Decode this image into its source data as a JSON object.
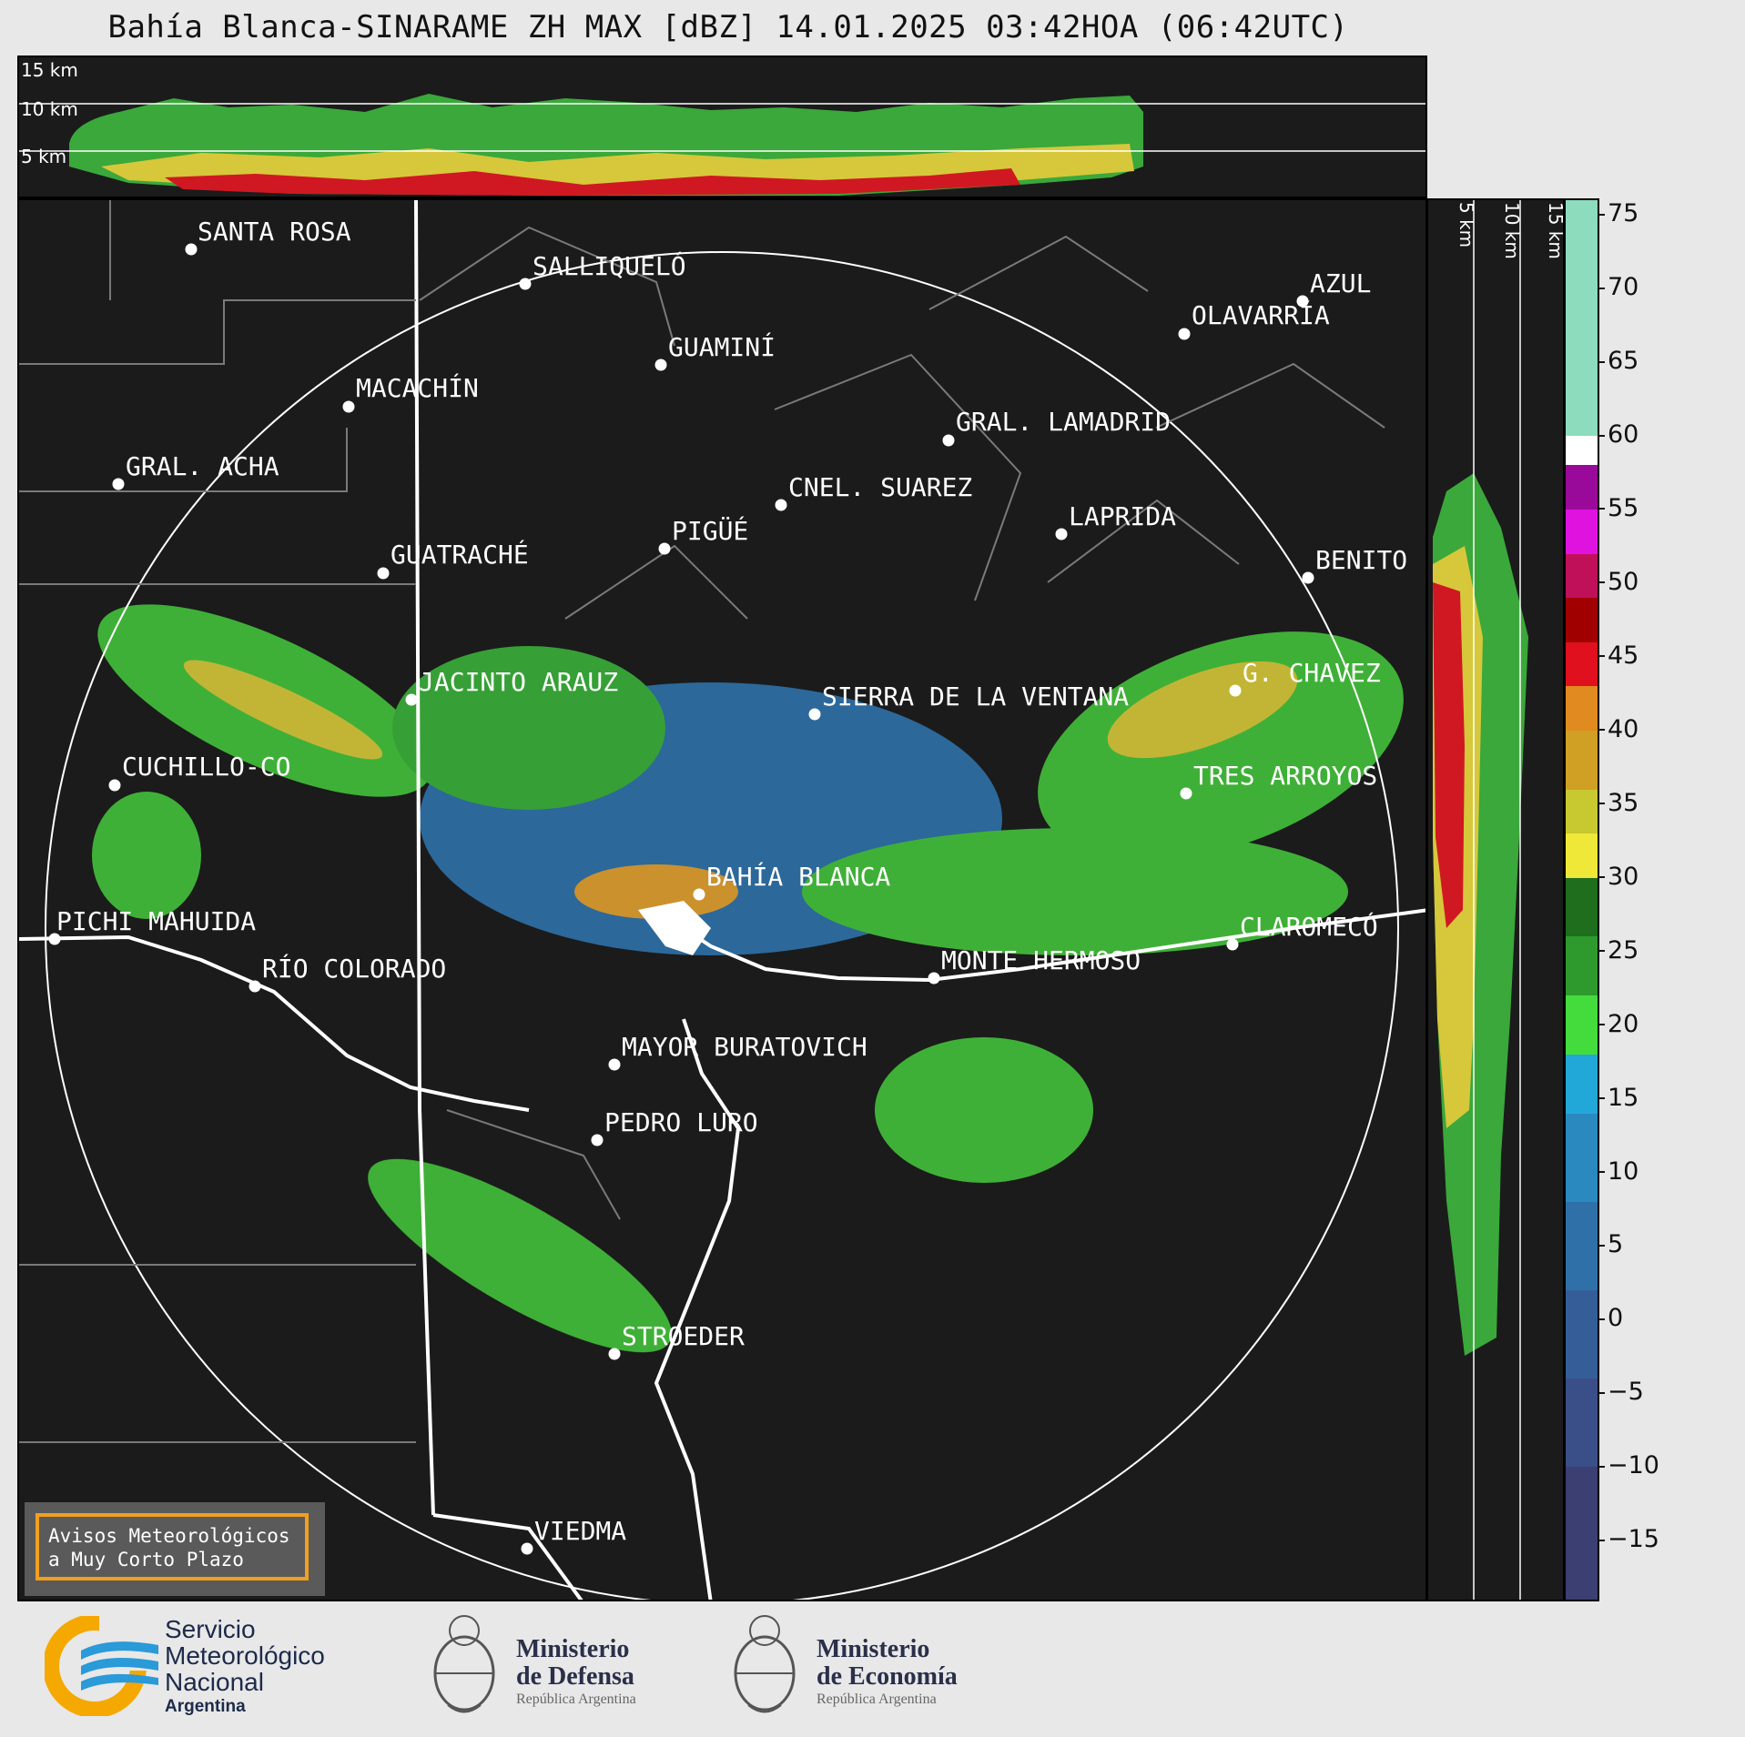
{
  "title": "Bahía Blanca-SINARAME ZH MAX [dBZ] 14.01.2025 03:42HOA (06:42UTC)",
  "top_panel": {
    "labels": [
      "15 km",
      "10 km",
      "5 km"
    ]
  },
  "side_panel": {
    "labels": [
      "5 km",
      "10 km",
      "15 km"
    ]
  },
  "colorbar": {
    "ticks": [
      "75",
      "70",
      "65",
      "60",
      "55",
      "50",
      "45",
      "40",
      "35",
      "30",
      "25",
      "20",
      "15",
      "10",
      "5",
      "0",
      "−5",
      "−10",
      "−15"
    ],
    "segments": [
      {
        "from": 76,
        "to": 60,
        "color": "#8ddcbe"
      },
      {
        "from": 60,
        "to": 58,
        "color": "#ffffff"
      },
      {
        "from": 58,
        "to": 55,
        "color": "#9a0a9a"
      },
      {
        "from": 55,
        "to": 52,
        "color": "#e012e0"
      },
      {
        "from": 52,
        "to": 49,
        "color": "#c0105a"
      },
      {
        "from": 49,
        "to": 46,
        "color": "#a00000"
      },
      {
        "from": 46,
        "to": 43,
        "color": "#e0101e"
      },
      {
        "from": 43,
        "to": 40,
        "color": "#e08a20"
      },
      {
        "from": 40,
        "to": 36,
        "color": "#d0a025"
      },
      {
        "from": 36,
        "to": 33,
        "color": "#c8c830"
      },
      {
        "from": 33,
        "to": 30,
        "color": "#f0e838"
      },
      {
        "from": 30,
        "to": 26,
        "color": "#1e6e1e"
      },
      {
        "from": 26,
        "to": 22,
        "color": "#2e9a2e"
      },
      {
        "from": 22,
        "to": 18,
        "color": "#44dc3c"
      },
      {
        "from": 18,
        "to": 14,
        "color": "#22a8d8"
      },
      {
        "from": 14,
        "to": 8,
        "color": "#2a8ac0"
      },
      {
        "from": 8,
        "to": 2,
        "color": "#2f70a8"
      },
      {
        "from": 2,
        "to": -4,
        "color": "#355e98"
      },
      {
        "from": -4,
        "to": -10,
        "color": "#3a4f88"
      },
      {
        "from": -10,
        "to": -19,
        "color": "#3c3f72"
      }
    ]
  },
  "cities": [
    {
      "name": "SANTA ROSA"
    },
    {
      "name": "SALLIQUELÓ"
    },
    {
      "name": "AZUL"
    },
    {
      "name": "OLAVARRÍA"
    },
    {
      "name": "GUAMINÍ"
    },
    {
      "name": "MACACHÍN"
    },
    {
      "name": "GRAL. LAMADRID"
    },
    {
      "name": "GRAL. ACHA"
    },
    {
      "name": "CNEL. SUAREZ"
    },
    {
      "name": "LAPRIDA"
    },
    {
      "name": "PIGÜÉ"
    },
    {
      "name": "GUATRACHÉ"
    },
    {
      "name": "BENITO"
    },
    {
      "name": "G. CHAVEZ"
    },
    {
      "name": "JACINTO ARAUZ"
    },
    {
      "name": "SIERRA DE LA VENTANA"
    },
    {
      "name": "CUCHILLO-CO"
    },
    {
      "name": "TRES ARROYOS"
    },
    {
      "name": "BAHÍA BLANCA"
    },
    {
      "name": "PICHI MAHUIDA"
    },
    {
      "name": "CLAROMECÓ"
    },
    {
      "name": "RÍO COLORADO"
    },
    {
      "name": "MONTE HERMOSO"
    },
    {
      "name": "MAYOR BURATOVICH"
    },
    {
      "name": "PEDRO LURO"
    },
    {
      "name": "STROEDER"
    },
    {
      "name": "VIEDMA"
    }
  ],
  "avisos": {
    "line1": "Avisos Meteorológicos",
    "line2": "a Muy Corto Plazo"
  },
  "logos": {
    "smn": {
      "line1": "Servicio",
      "line2": "Meteorológico",
      "line3": "Nacional",
      "line4": "Argentina"
    },
    "defensa": {
      "line1": "Ministerio",
      "line2": "de Defensa",
      "line3": "República Argentina"
    },
    "economia": {
      "line1": "Ministerio",
      "line2": "de Economía",
      "line3": "República Argentina"
    }
  }
}
